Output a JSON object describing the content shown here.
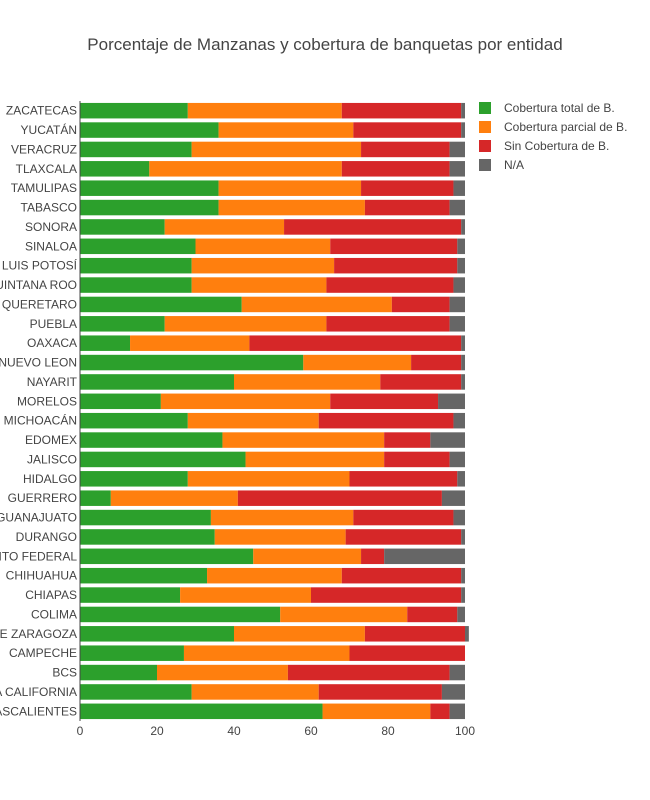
{
  "chart_data": {
    "type": "bar",
    "orientation": "horizontal",
    "stacked": true,
    "title": "Porcentaje de Manzanas y cobertura de banquetas por entidad",
    "xlim": [
      0,
      100
    ],
    "xticks": [
      "0",
      "20",
      "40",
      "60",
      "80",
      "100"
    ],
    "grid": false,
    "legend_position": "top-right",
    "categories": [
      "ZACATECAS",
      "YUCATÁN",
      "VERACRUZ",
      "TLAXCALA",
      "TAMULIPAS",
      "TABASCO",
      "SONORA",
      "SINALOA",
      "SAN LUIS POTOSÍ",
      "QUINTANA ROO",
      "QUERETARO",
      "PUEBLA",
      "OAXACA",
      "NUEVO LEON",
      "NAYARIT",
      "MORELOS",
      "MICHOACÁN",
      "EDOMEX",
      "JALISCO",
      "HIDALGO",
      "GUERRERO",
      "GUANAJUATO",
      "DURANGO",
      "DISTRITO FEDERAL",
      "CHIHUAHUA",
      "CHIAPAS",
      "COLIMA",
      "COAHUILA DE ZARAGOZA",
      "CAMPECHE",
      "BCS",
      "BAJA CALIFORNIA",
      "AGUASCALIENTES"
    ],
    "series": [
      {
        "name": "Cobertura total de B.",
        "color": "#2ca02c",
        "values": [
          28,
          36,
          29,
          18,
          36,
          36,
          22,
          30,
          29,
          29,
          42,
          22,
          13,
          58,
          40,
          21,
          28,
          37,
          43,
          28,
          8,
          34,
          35,
          45,
          33,
          26,
          52,
          40,
          27,
          20,
          29,
          63
        ]
      },
      {
        "name": "Cobertura parcial de B.",
        "color": "#ff7f0e",
        "values": [
          40,
          35,
          44,
          50,
          37,
          38,
          31,
          35,
          37,
          35,
          39,
          42,
          31,
          28,
          38,
          44,
          34,
          42,
          36,
          42,
          33,
          37,
          34,
          28,
          35,
          34,
          33,
          34,
          43,
          34,
          33,
          28
        ]
      },
      {
        "name": "Sin Cobertura de B.",
        "color": "#d62728",
        "values": [
          31,
          28,
          23,
          28,
          24,
          22,
          46,
          33,
          32,
          33,
          15,
          32,
          55,
          13,
          21,
          28,
          35,
          12,
          17,
          28,
          53,
          26,
          30,
          6,
          31,
          39,
          13,
          26,
          30,
          42,
          32,
          5
        ]
      },
      {
        "name": "N/A",
        "color": "#666666",
        "values": [
          1,
          1,
          4,
          4,
          3,
          4,
          1,
          2,
          2,
          3,
          4,
          4,
          1,
          1,
          1,
          7,
          3,
          9,
          4,
          2,
          6,
          3,
          1,
          21,
          1,
          1,
          2,
          1,
          0,
          4,
          6,
          4
        ]
      }
    ]
  }
}
